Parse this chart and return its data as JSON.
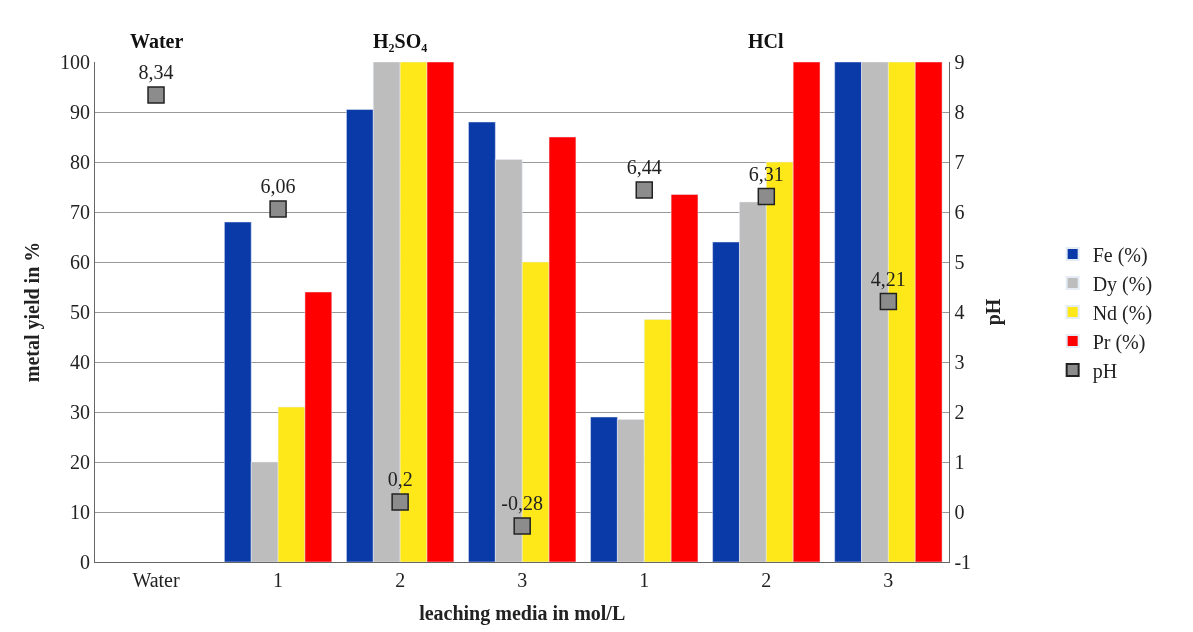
{
  "chart_data": {
    "type": "bar",
    "categories": [
      "Water",
      "1",
      "2",
      "3",
      "1",
      "2",
      "3"
    ],
    "xlabel": "leaching media in mol/L",
    "ylabel": "metal yield in %",
    "y2label": "pH",
    "annotations": [
      "Water",
      "H₂SO₄",
      "HCl"
    ],
    "series": [
      {
        "name": "Fe (%)",
        "color": "#0a3aa8",
        "values": [
          null,
          68,
          90.5,
          88,
          29,
          64,
          100
        ]
      },
      {
        "name": "Dy (%)",
        "color": "#bdbdbd",
        "values": [
          null,
          20,
          100,
          80.5,
          28.5,
          72,
          100
        ]
      },
      {
        "name": "Nd (%)",
        "color": "#ffe81a",
        "values": [
          null,
          31,
          100,
          60,
          48.5,
          80,
          100
        ]
      },
      {
        "name": "Pr (%)",
        "color": "#ff0000",
        "values": [
          null,
          54,
          100,
          85,
          73.5,
          100,
          100
        ]
      },
      {
        "name": "pH",
        "type": "scatter",
        "axis": "y2",
        "marker": "square",
        "color": "#8c8c8c",
        "values": [
          8.34,
          6.06,
          0.2,
          -0.28,
          6.44,
          6.31,
          4.21
        ],
        "value_labels": [
          "8,34",
          "6,06",
          "0,2",
          "-0,28",
          "6,44",
          "6,31",
          "4,21"
        ]
      }
    ],
    "ylim": [
      0,
      100
    ],
    "yticks": [
      0,
      10,
      20,
      30,
      40,
      50,
      60,
      70,
      80,
      90,
      100
    ],
    "y2lim": [
      -1,
      9
    ],
    "y2ticks": [
      -1,
      0,
      1,
      2,
      3,
      4,
      5,
      6,
      7,
      8,
      9
    ],
    "grid": "y",
    "legend": "right"
  }
}
